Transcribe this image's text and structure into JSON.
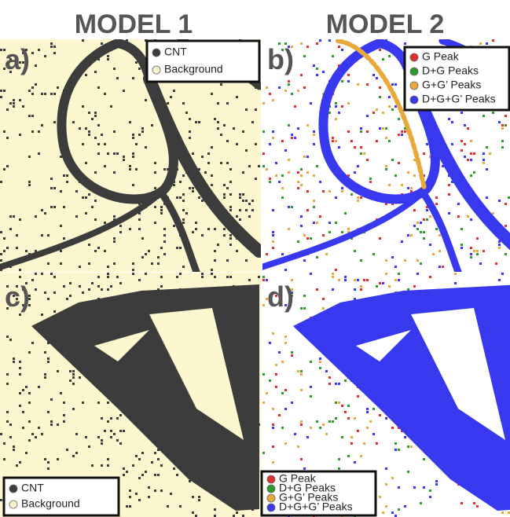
{
  "titles": [
    "MODEL 1",
    "MODEL 2"
  ],
  "panels": [
    {
      "label": "a)",
      "legend": [
        "CNT",
        "Background"
      ]
    },
    {
      "label": "b)",
      "legend": [
        "G Peak",
        "D+G Peaks",
        "G+G’ Peaks",
        "D+G+G’ Peaks"
      ]
    },
    {
      "label": "c)",
      "legend": [
        "CNT",
        "Background"
      ]
    },
    {
      "label": "d)",
      "legend": [
        "G Peak",
        "D+G Peaks",
        "G+G’ Peaks",
        "D+G+G’ Peaks"
      ]
    }
  ]
}
